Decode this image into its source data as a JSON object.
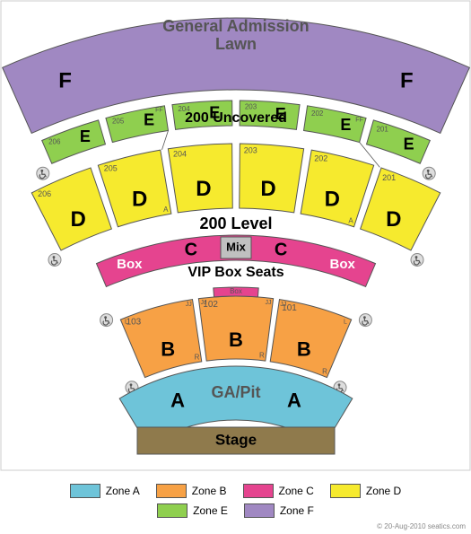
{
  "colors": {
    "zoneA": "#6ec4d9",
    "zoneB": "#f7a145",
    "zoneC": "#e5448f",
    "zoneD": "#f6ea2e",
    "zoneE": "#8fcf4f",
    "zoneF": "#a088c2",
    "stage": "#8f7a4c",
    "stroke": "#555555",
    "text": "#555555",
    "darkText": "#000000",
    "mixFill": "#c0c0c0",
    "wheelchair": "#888888",
    "chartBorder": "#cccccc"
  },
  "stage": {
    "label": "Stage"
  },
  "zoneA": {
    "zone_letter": "A",
    "center_label": "GA/Pit"
  },
  "zoneB": {
    "zone_letter": "B",
    "sections": [
      {
        "num": "103",
        "row_left": "L",
        "row_right": "JJ",
        "row_bottom": "R"
      },
      {
        "num": "102",
        "row_left": "JJ",
        "row_right": "JJ",
        "row_bottom": "R",
        "box_label": "Box"
      },
      {
        "num": "101",
        "row_left": "JJ",
        "row_right": "L",
        "row_bottom": "R"
      }
    ]
  },
  "vip_label": "VIP Box Seats",
  "zoneC": {
    "zone_letter": "C",
    "box_label": "Box",
    "mix_label": "Mix"
  },
  "level200_label": "200 Level",
  "zoneD": {
    "zone_letter": "D",
    "sections": [
      {
        "num": "206"
      },
      {
        "num": "205",
        "row_bottom": "A"
      },
      {
        "num": "204"
      },
      {
        "num": "203"
      },
      {
        "num": "202",
        "row_bottom": "A"
      },
      {
        "num": "201"
      }
    ]
  },
  "uncovered_label": "200 Uncovered",
  "zoneE": {
    "zone_letter": "E",
    "sections": [
      {
        "num": "206"
      },
      {
        "num": "205",
        "row_top": "FF"
      },
      {
        "num": "204"
      },
      {
        "num": "203"
      },
      {
        "num": "202",
        "row_top": "FF"
      },
      {
        "num": "201"
      }
    ]
  },
  "zoneF": {
    "zone_letter": "F",
    "top_label": "General Admission",
    "bottom_label": "Lawn"
  },
  "legend": [
    {
      "key": "zoneA",
      "label": "Zone A"
    },
    {
      "key": "zoneB",
      "label": "Zone B"
    },
    {
      "key": "zoneC",
      "label": "Zone C"
    },
    {
      "key": "zoneD",
      "label": "Zone D"
    },
    {
      "key": "zoneE",
      "label": "Zone E"
    },
    {
      "key": "zoneF",
      "label": "Zone F"
    }
  ],
  "footer": "© 20-Aug-2010 seatics.com"
}
